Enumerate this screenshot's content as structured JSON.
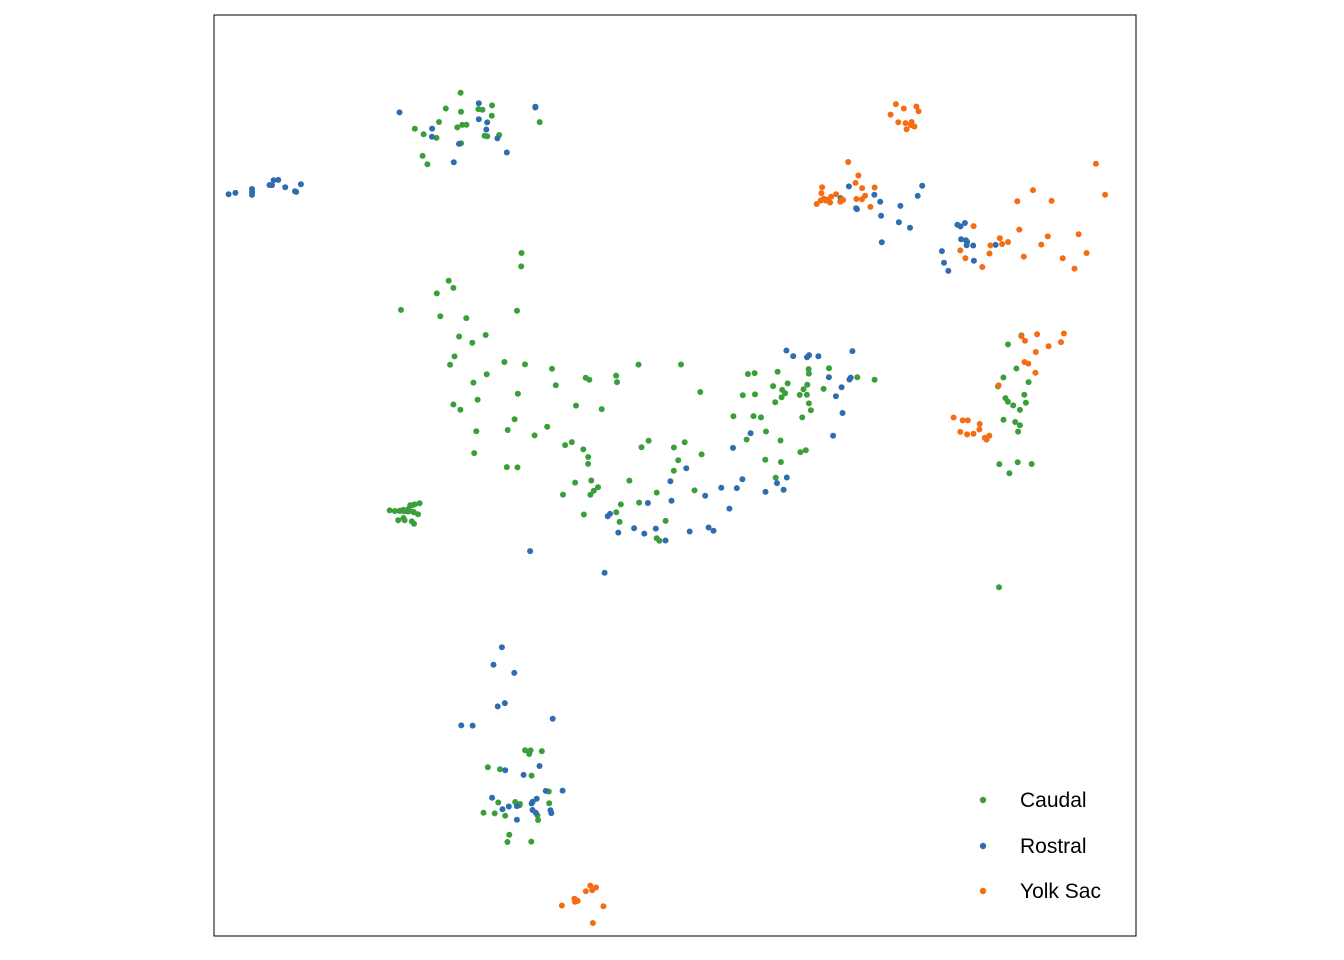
{
  "chart_data": {
    "type": "scatter",
    "title": "",
    "xlabel": "",
    "ylabel": "",
    "axes_ticks": false,
    "grid": false,
    "frame": true,
    "xlim": [
      0,
      100
    ],
    "ylim": [
      0,
      100
    ],
    "legend": {
      "placement": "bottom-right",
      "entries": [
        {
          "label": "Caudal",
          "color": "#3a9f3a"
        },
        {
          "label": "Rostral",
          "color": "#2f6cb0"
        },
        {
          "label": "Yolk Sac",
          "color": "#f46d12"
        }
      ]
    },
    "clusters": [
      {
        "name": "Caudal",
        "color": "#3a9f3a",
        "n": 190,
        "blobs": [
          [
            27,
            65,
            8,
            10
          ],
          [
            37,
            56,
            10,
            7
          ],
          [
            47,
            48,
            8,
            5
          ],
          [
            57,
            55,
            9,
            5
          ],
          [
            63,
            60,
            8,
            3
          ],
          [
            27,
            88,
            6,
            4
          ],
          [
            21,
            46,
            1.5,
            1.2
          ],
          [
            33,
            15,
            4,
            6
          ],
          [
            87,
            58,
            2,
            8
          ]
        ]
      },
      {
        "name": "Rostral",
        "color": "#2f6cb0",
        "n": 120,
        "blobs": [
          [
            29,
            87,
            6,
            4
          ],
          [
            6,
            81,
            4,
            1.2
          ],
          [
            48,
            45,
            6,
            4
          ],
          [
            56,
            49,
            6,
            4
          ],
          [
            66,
            60,
            3,
            5
          ],
          [
            31,
            25,
            4,
            12
          ],
          [
            35,
            14,
            3,
            3
          ],
          [
            74,
            80,
            4,
            5
          ],
          [
            81,
            75,
            3,
            2
          ]
        ]
      },
      {
        "name": "Yolk Sac",
        "color": "#f46d12",
        "n": 90,
        "blobs": [
          [
            75,
            89,
            2,
            1.5
          ],
          [
            67,
            80,
            2,
            1.2
          ],
          [
            86,
            75,
            4,
            2
          ],
          [
            91,
            78,
            4,
            5
          ],
          [
            82,
            55,
            2,
            1.5
          ],
          [
            89,
            63,
            4,
            3
          ],
          [
            40,
            4,
            2,
            1.5
          ],
          [
            69,
            81,
            3,
            2
          ]
        ]
      }
    ]
  }
}
